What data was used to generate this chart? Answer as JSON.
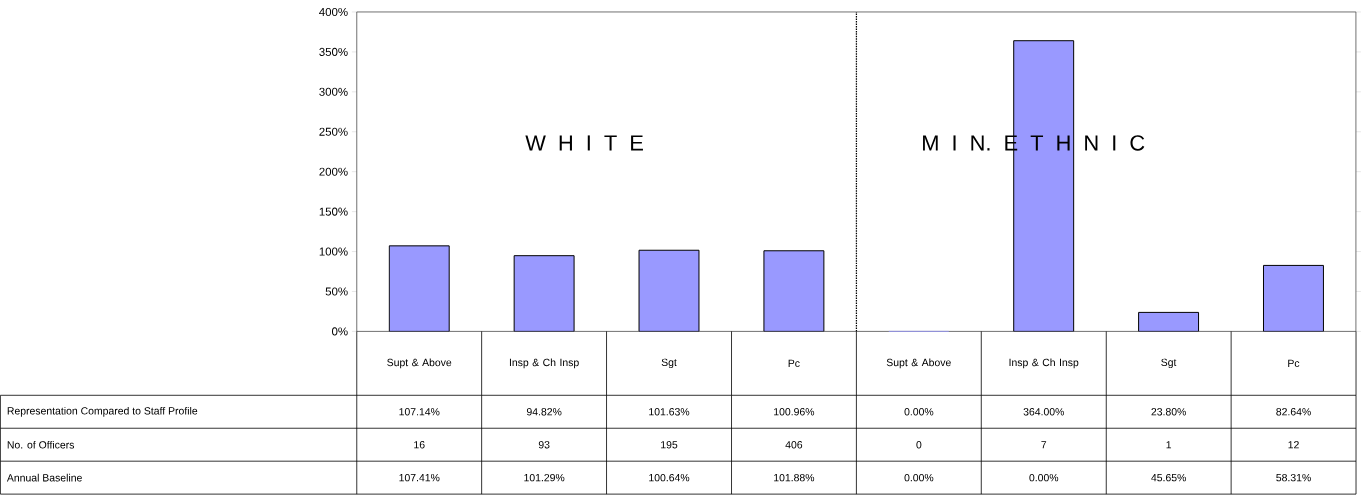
{
  "chart_data": {
    "type": "bar",
    "categories": [
      "Supt & Above",
      "Insp & Ch Insp",
      "Sgt",
      "Pc",
      "Supt & Above",
      "Insp & Ch Insp",
      "Sgt",
      "Pc"
    ],
    "series": [
      {
        "name": "Representation Compared to Staff Profile",
        "color": "#9999ff",
        "values": [
          107.14,
          94.82,
          101.63,
          100.96,
          0.0,
          364.0,
          23.8,
          82.64
        ],
        "value_labels": [
          "107.14%",
          "94.82%",
          "101.63%",
          "100.96%",
          "0.00%",
          "364.00%",
          "23.80%",
          "82.64%"
        ]
      }
    ],
    "ylim": [
      0,
      400
    ],
    "yticks": [
      {
        "value": 0,
        "label": "0%"
      },
      {
        "value": 50,
        "label": "50%"
      },
      {
        "value": 100,
        "label": "100%"
      },
      {
        "value": 150,
        "label": "150%"
      },
      {
        "value": 200,
        "label": "200%"
      },
      {
        "value": 250,
        "label": "250%"
      },
      {
        "value": 300,
        "label": "300%"
      },
      {
        "value": 350,
        "label": "350%"
      },
      {
        "value": 400,
        "label": "400%"
      }
    ],
    "annotations": [
      "W H I T E",
      "M I N.  E T H N I C",
      "No. of Officers",
      "16",
      "93",
      "195",
      "406",
      "0",
      "7",
      "1",
      "12",
      "Annual Baseline",
      "107.41%",
      "101.29%",
      "100.64%",
      "101.88%",
      "0.00%",
      "0.00%",
      "45.65%",
      "58.31%"
    ],
    "grid": false
  }
}
